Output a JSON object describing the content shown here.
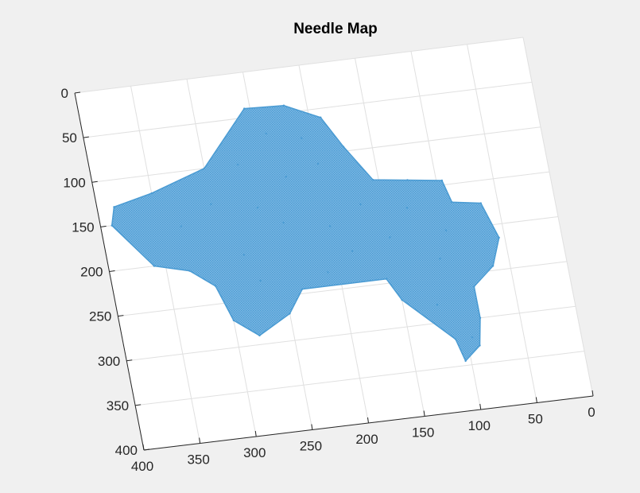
{
  "chart_data": {
    "type": "scatter",
    "title": "Needle Map",
    "xlabel": "",
    "ylabel": "",
    "x_ticks": [
      "0",
      "50",
      "100",
      "150",
      "200",
      "250",
      "300",
      "350",
      "400"
    ],
    "y_ticks": [
      "0",
      "50",
      "100",
      "150",
      "200",
      "250",
      "300",
      "350",
      "400"
    ],
    "xlim": [
      0,
      400
    ],
    "ylim": [
      0,
      400
    ],
    "x_direction": "reversed",
    "y_direction": "reversed",
    "grid": true,
    "series_color": "#4a9bd3",
    "points": [
      [
        220,
        42
      ],
      [
        190,
        60
      ],
      [
        175,
        95
      ],
      [
        155,
        135
      ],
      [
        125,
        140
      ],
      [
        95,
        145
      ],
      [
        90,
        170
      ],
      [
        65,
        175
      ],
      [
        55,
        215
      ],
      [
        65,
        245
      ],
      [
        85,
        265
      ],
      [
        85,
        300
      ],
      [
        90,
        330
      ],
      [
        105,
        345
      ],
      [
        110,
        320
      ],
      [
        150,
        270
      ],
      [
        160,
        245
      ],
      [
        235,
        245
      ],
      [
        250,
        270
      ],
      [
        280,
        290
      ],
      [
        300,
        270
      ],
      [
        310,
        230
      ],
      [
        330,
        210
      ],
      [
        360,
        200
      ],
      [
        390,
        150
      ],
      [
        385,
        130
      ],
      [
        350,
        120
      ],
      [
        300,
        100
      ],
      [
        255,
        40
      ],
      [
        210,
        80
      ],
      [
        230,
        120
      ],
      [
        260,
        150
      ],
      [
        280,
        200
      ],
      [
        200,
        180
      ],
      [
        150,
        200
      ],
      [
        110,
        230
      ],
      [
        100,
        200
      ],
      [
        130,
        170
      ],
      [
        170,
        160
      ],
      [
        240,
        170
      ],
      [
        330,
        160
      ],
      [
        300,
        140
      ],
      [
        270,
        100
      ],
      [
        240,
        70
      ],
      [
        200,
        110
      ],
      [
        120,
        280
      ],
      [
        95,
        320
      ],
      [
        185,
        210
      ],
      [
        210,
        230
      ],
      [
        270,
        230
      ]
    ]
  }
}
